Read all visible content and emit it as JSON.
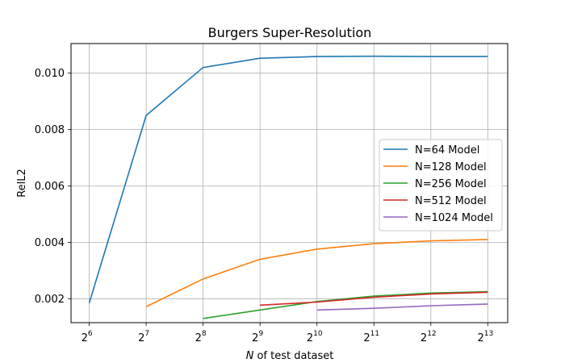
{
  "chart_data": {
    "type": "line",
    "title": "Burgers Super-Resolution",
    "xlabel_italic": "N",
    "xlabel_rest": " of test dataset",
    "ylabel": "RelL2",
    "x_scale": "log2",
    "x_tick_base": "2",
    "x_tick_exponents": [
      "6",
      "7",
      "8",
      "9",
      "10",
      "11",
      "12",
      "13"
    ],
    "xlim_exponent": [
      5.68,
      13.35
    ],
    "ylim": [
      0.00115,
      0.01105
    ],
    "y_ticks": [
      0.002,
      0.004,
      0.006,
      0.008,
      0.01
    ],
    "y_tick_labels": [
      "0.002",
      "0.004",
      "0.006",
      "0.008",
      "0.010"
    ],
    "grid": true,
    "legend_position": "center-right",
    "series": [
      {
        "name": "N=64 Model",
        "color": "#1f77b4",
        "x_exponent": [
          6,
          7,
          8,
          9,
          10,
          11,
          12,
          13
        ],
        "values": [
          0.00185,
          0.0085,
          0.0102,
          0.01053,
          0.01059,
          0.0106,
          0.01059,
          0.01059
        ]
      },
      {
        "name": "N=128 Model",
        "color": "#ff7f0e",
        "x_exponent": [
          7,
          8,
          9,
          10,
          11,
          12,
          13
        ],
        "values": [
          0.00172,
          0.0027,
          0.0034,
          0.00376,
          0.00395,
          0.00405,
          0.0041
        ]
      },
      {
        "name": "N=256 Model",
        "color": "#2ca02c",
        "x_exponent": [
          8,
          9,
          10,
          11,
          12,
          13
        ],
        "values": [
          0.0013,
          0.0016,
          0.0019,
          0.00209,
          0.0022,
          0.00225
        ]
      },
      {
        "name": "N=512 Model",
        "color": "#d62728",
        "x_exponent": [
          9,
          10,
          11,
          12,
          13
        ],
        "values": [
          0.00177,
          0.00188,
          0.00205,
          0.00217,
          0.00223
        ]
      },
      {
        "name": "N=1024 Model",
        "color": "#9467bd",
        "x_exponent": [
          10,
          11,
          12,
          13
        ],
        "values": [
          0.0016,
          0.00166,
          0.00175,
          0.00181
        ]
      }
    ]
  }
}
